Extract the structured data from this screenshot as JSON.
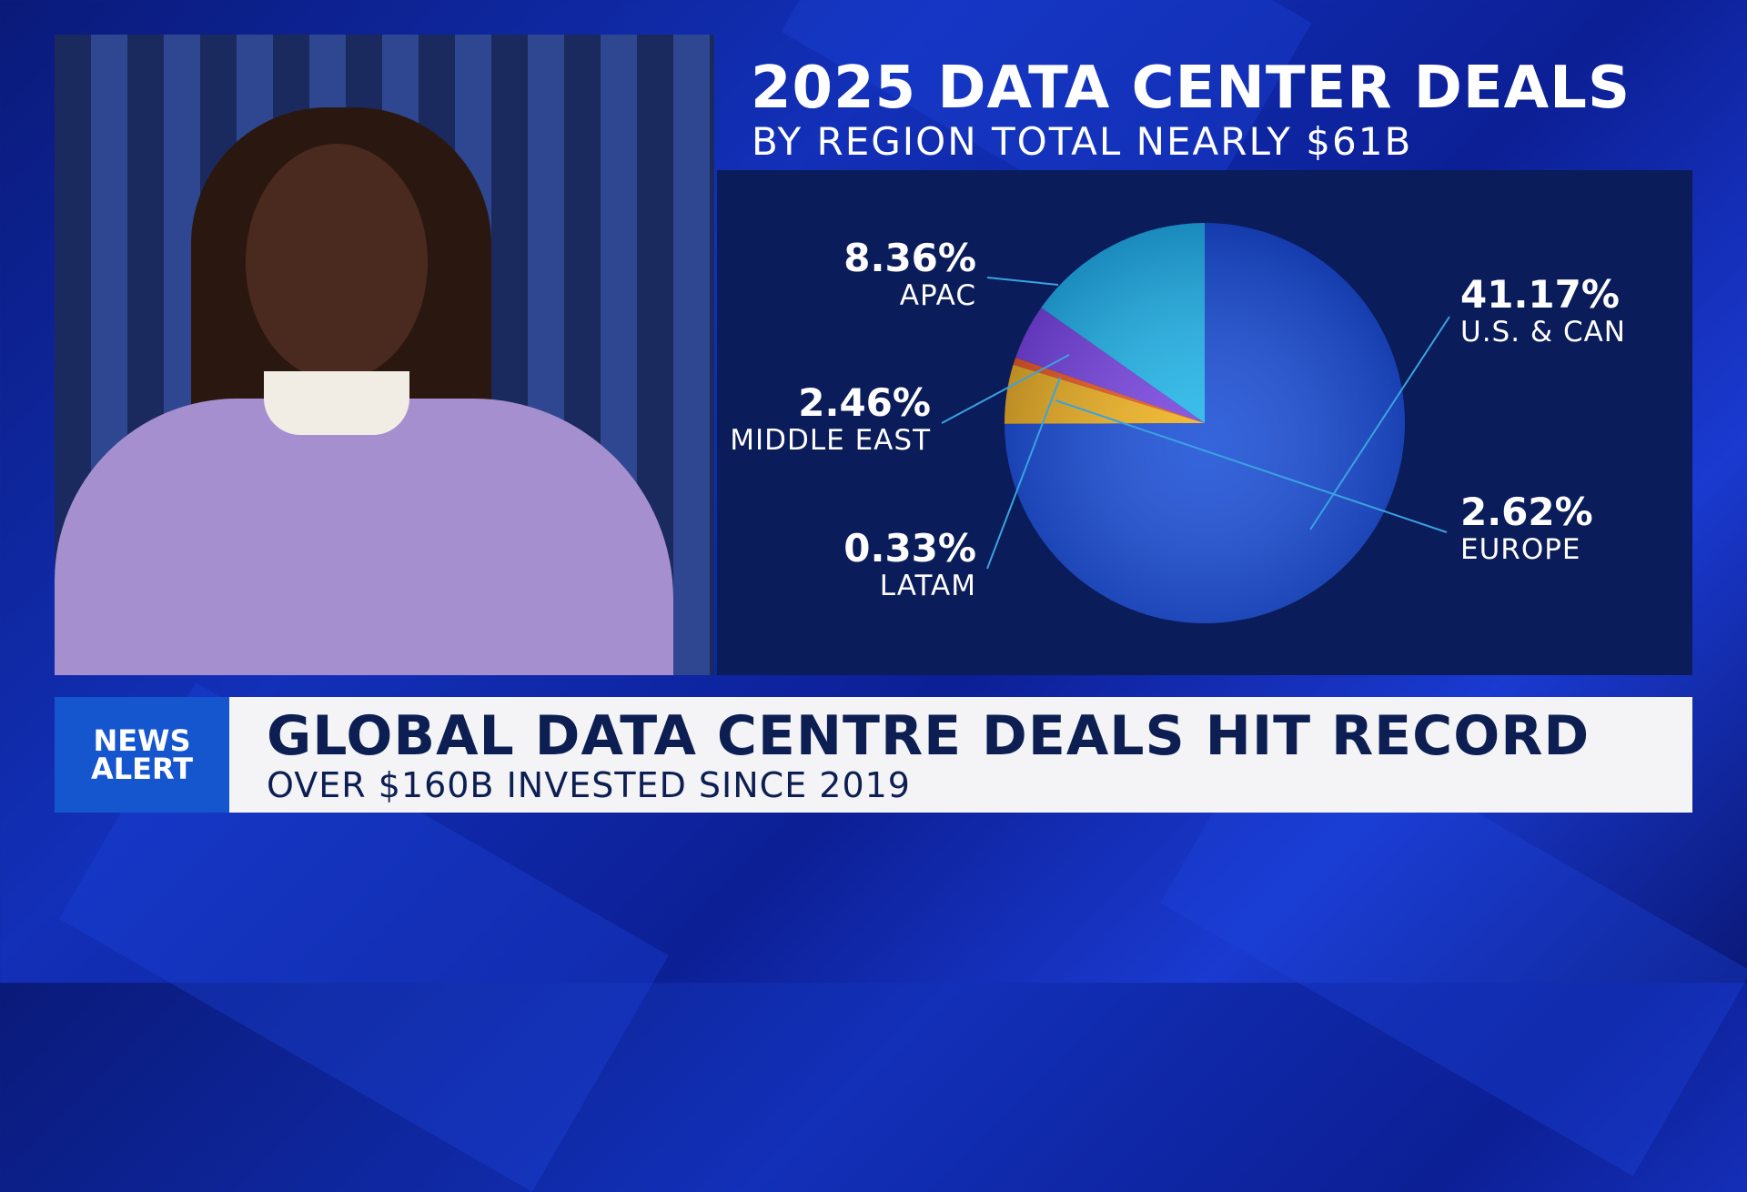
{
  "chart_data": {
    "type": "pie",
    "title": "2025 DATA CENTER DEALS",
    "subtitle": "BY REGION TOTAL NEARLY $61B",
    "slices": [
      {
        "name": "APAC",
        "label": "8.36%",
        "value": 8.36,
        "color": "#22b8ea"
      },
      {
        "name": "MIDDLE EAST",
        "label": "2.46%",
        "value": 2.46,
        "color": "#7a45e0"
      },
      {
        "name": "LATAM",
        "label": "0.33%",
        "value": 0.33,
        "color": "#f05a1a"
      },
      {
        "name": "EUROPE",
        "label": "2.62%",
        "value": 2.62,
        "color": "#f2b41c"
      },
      {
        "name": "U.S. & CAN",
        "label": "41.17%",
        "value": 41.17,
        "color": "#1a4fd6"
      }
    ],
    "legend": "leader-line labels"
  },
  "lower_third": {
    "badge_line1": "NEWS",
    "badge_line2": "ALERT",
    "headline": "GLOBAL DATA CENTRE DEALS HIT RECORD",
    "subheadline": "OVER $160B INVESTED SINCE 2019"
  }
}
